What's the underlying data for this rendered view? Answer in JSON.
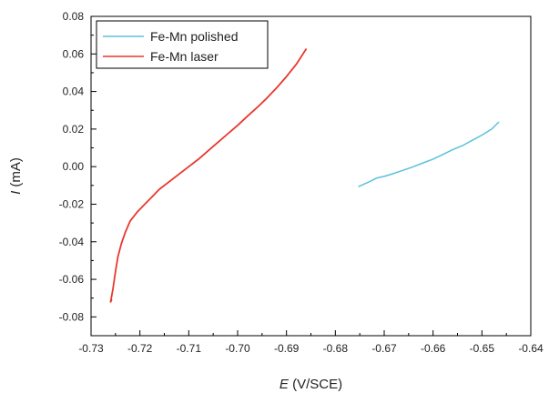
{
  "chart_data": {
    "type": "line",
    "title": "",
    "xlabel": {
      "italic": "E",
      "rest": " (V/SCE)"
    },
    "ylabel": {
      "italic": "I",
      "rest": " (mA)"
    },
    "xlim": [
      -0.73,
      -0.64
    ],
    "ylim": [
      -0.09,
      0.08
    ],
    "xticks": [
      -0.73,
      -0.72,
      -0.71,
      -0.7,
      -0.69,
      -0.68,
      -0.67,
      -0.66,
      -0.65,
      -0.64
    ],
    "xtick_labels": [
      "-0.73",
      "-0.72",
      "-0.71",
      "-0.70",
      "-0.69",
      "-0.68",
      "-0.67",
      "-0.66",
      "-0.65",
      "-0.64"
    ],
    "yticks": [
      -0.08,
      -0.06,
      -0.04,
      -0.02,
      0.0,
      0.02,
      0.04,
      0.06,
      0.08
    ],
    "ytick_labels": [
      "-0.08",
      "-0.06",
      "-0.04",
      "-0.02",
      "0.00",
      "0.02",
      "0.04",
      "0.06",
      "0.08"
    ],
    "grid": false,
    "legend": "top-left",
    "series": [
      {
        "name": "Fe-Mn polished",
        "color": "#5bc0de",
        "x": [
          -0.6752,
          -0.673,
          -0.6715,
          -0.67,
          -0.668,
          -0.666,
          -0.664,
          -0.662,
          -0.66,
          -0.658,
          -0.656,
          -0.654,
          -0.652,
          -0.65,
          -0.648,
          -0.6466
        ],
        "y": [
          -0.0105,
          -0.008,
          -0.006,
          -0.0052,
          -0.0036,
          -0.0018,
          0.0,
          0.002,
          0.004,
          0.0065,
          0.009,
          0.0112,
          0.014,
          0.0168,
          0.02,
          0.0236
        ]
      },
      {
        "name": "Fe-Mn laser",
        "color": "#e8382d",
        "x": [
          -0.7258,
          -0.726,
          -0.7255,
          -0.725,
          -0.7245,
          -0.7238,
          -0.723,
          -0.722,
          -0.7205,
          -0.719,
          -0.7175,
          -0.716,
          -0.714,
          -0.712,
          -0.71,
          -0.708,
          -0.706,
          -0.704,
          -0.702,
          -0.7,
          -0.698,
          -0.696,
          -0.694,
          -0.692,
          -0.69,
          -0.688,
          -0.686
        ],
        "y": [
          -0.071,
          -0.072,
          -0.065,
          -0.056,
          -0.048,
          -0.041,
          -0.035,
          -0.029,
          -0.024,
          -0.02,
          -0.016,
          -0.012,
          -0.008,
          -0.004,
          0.0,
          0.004,
          0.0085,
          0.013,
          0.0175,
          0.022,
          0.0268,
          0.0315,
          0.0365,
          0.042,
          0.048,
          0.0545,
          0.0625
        ]
      }
    ]
  }
}
